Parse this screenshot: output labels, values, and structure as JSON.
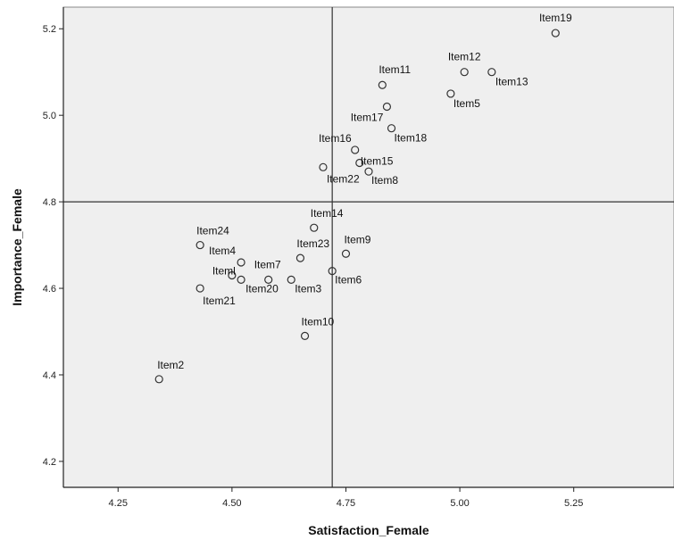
{
  "chart_data": {
    "type": "scatter",
    "xlabel": "Satisfaction_Female",
    "ylabel": "Importance_Female",
    "xlim": [
      4.13,
      5.47
    ],
    "ylim": [
      4.14,
      5.25
    ],
    "xticks": [
      "4.25",
      "4.50",
      "4.75",
      "5.00",
      "5.25"
    ],
    "yticks": [
      "4.2",
      "4.4",
      "4.6",
      "4.8",
      "5.0",
      "5.2"
    ],
    "reference_lines": {
      "x": 4.72,
      "y": 4.8
    },
    "grid": false,
    "colors": {
      "plot_background": "#efefef",
      "marker": "#333333"
    },
    "points": [
      {
        "label": "Item19",
        "x": 5.21,
        "y": 5.19
      },
      {
        "label": "Item12",
        "x": 5.01,
        "y": 5.1
      },
      {
        "label": "Item13",
        "x": 5.07,
        "y": 5.1
      },
      {
        "label": "Item11",
        "x": 4.83,
        "y": 5.07
      },
      {
        "label": "Item5",
        "x": 4.98,
        "y": 5.05
      },
      {
        "label": "Item17",
        "x": 4.84,
        "y": 5.02
      },
      {
        "label": "Item18",
        "x": 4.85,
        "y": 4.97
      },
      {
        "label": "Item16",
        "x": 4.77,
        "y": 4.92
      },
      {
        "label": "Item15",
        "x": 4.78,
        "y": 4.89
      },
      {
        "label": "Item22",
        "x": 4.7,
        "y": 4.88
      },
      {
        "label": "Item8",
        "x": 4.8,
        "y": 4.87
      },
      {
        "label": "Item14",
        "x": 4.68,
        "y": 4.74
      },
      {
        "label": "Item24",
        "x": 4.43,
        "y": 4.7
      },
      {
        "label": "Item9",
        "x": 4.75,
        "y": 4.68
      },
      {
        "label": "Item23",
        "x": 4.65,
        "y": 4.67
      },
      {
        "label": "Item4",
        "x": 4.52,
        "y": 4.66
      },
      {
        "label": "Item6",
        "x": 4.72,
        "y": 4.64
      },
      {
        "label": "Item7",
        "x": 4.58,
        "y": 4.62
      },
      {
        "label": "Iteml",
        "x": 4.5,
        "y": 4.63
      },
      {
        "label": "Item20",
        "x": 4.52,
        "y": 4.62
      },
      {
        "label": "Item3",
        "x": 4.63,
        "y": 4.62
      },
      {
        "label": "Item21",
        "x": 4.43,
        "y": 4.6
      },
      {
        "label": "Item10",
        "x": 4.66,
        "y": 4.49
      },
      {
        "label": "Item2",
        "x": 4.34,
        "y": 4.39
      }
    ]
  }
}
